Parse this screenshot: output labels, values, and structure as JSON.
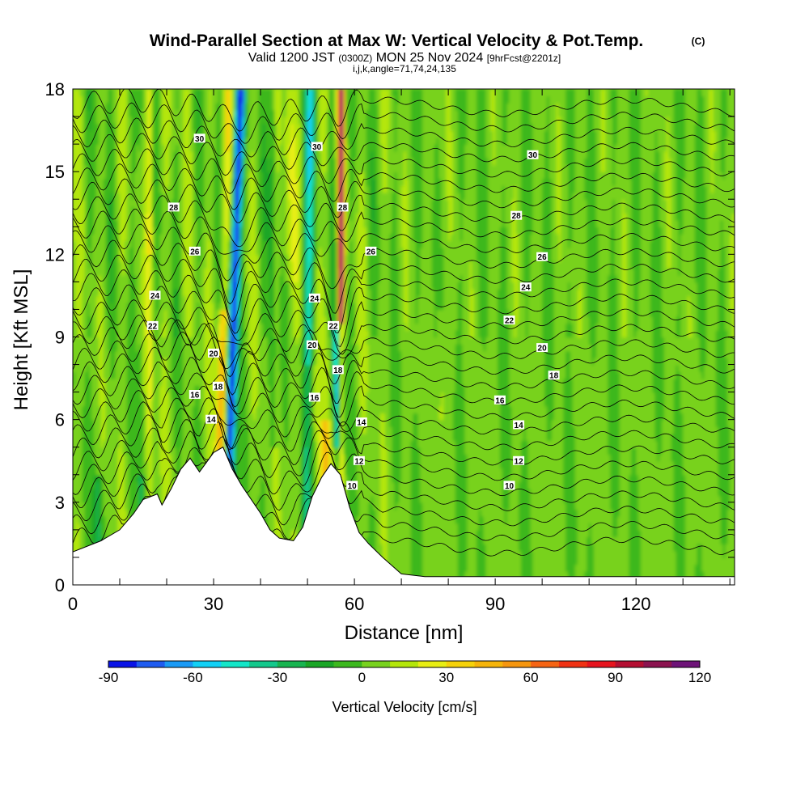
{
  "header": {
    "title_main": "Wind-Parallel Section at Max W: Vertical Velocity & Pot.Temp.",
    "title_mark": "(C)",
    "valid_a": "Valid 1200 JST",
    "valid_b": "(0300Z)",
    "valid_c": "MON 25 Nov 2024",
    "valid_d": "[9hrFcst@2201z]",
    "indices": "i,j,k,angle=71,74,24,135"
  },
  "chart_data": {
    "type": "heatmap",
    "xlabel": "Distance [nm]",
    "ylabel": "Height [Kft MSL]",
    "xlim": [
      0,
      141
    ],
    "ylim": [
      0,
      18
    ],
    "x_ticks": [
      0,
      30,
      60,
      90,
      120
    ],
    "y_ticks": [
      0,
      3,
      6,
      9,
      12,
      15,
      18
    ],
    "colorbar": {
      "label": "Vertical Velocity [cm/s]",
      "ticks": [
        -90,
        -60,
        -30,
        0,
        30,
        60,
        90,
        120
      ],
      "levels": [
        -90,
        -80,
        -70,
        -60,
        -50,
        -40,
        -30,
        -20,
        -10,
        0,
        10,
        20,
        30,
        40,
        50,
        60,
        70,
        80,
        90,
        100,
        110,
        120
      ],
      "colors": [
        "#0a14e6",
        "#1f5cf0",
        "#1a9af5",
        "#12d0f5",
        "#14e6c8",
        "#14c88c",
        "#18b450",
        "#1aa626",
        "#3cb81e",
        "#78d21e",
        "#b4e60a",
        "#e8ee14",
        "#f5d20a",
        "#f5b40a",
        "#f5960f",
        "#f56414",
        "#f03214",
        "#e6141e",
        "#b40f32",
        "#8c1450",
        "#6e1478"
      ]
    },
    "terrain_kft": [
      [
        0,
        1.2
      ],
      [
        6,
        1.6
      ],
      [
        10,
        2.0
      ],
      [
        13,
        2.6
      ],
      [
        15,
        3.1
      ],
      [
        18,
        3.3
      ],
      [
        19,
        2.9
      ],
      [
        21,
        3.5
      ],
      [
        23,
        4.2
      ],
      [
        25,
        4.6
      ],
      [
        27,
        4.1
      ],
      [
        30,
        4.8
      ],
      [
        32,
        5.0
      ],
      [
        34,
        4.2
      ],
      [
        36,
        3.6
      ],
      [
        38,
        3.1
      ],
      [
        40,
        2.6
      ],
      [
        42,
        2.0
      ],
      [
        44,
        1.7
      ],
      [
        47,
        1.6
      ],
      [
        49,
        2.1
      ],
      [
        51,
        3.2
      ],
      [
        53,
        3.9
      ],
      [
        55,
        4.4
      ],
      [
        57,
        4.0
      ],
      [
        59,
        2.8
      ],
      [
        61,
        1.9
      ],
      [
        63,
        1.5
      ],
      [
        66,
        1.0
      ],
      [
        70,
        0.4
      ],
      [
        75,
        0.3
      ],
      [
        141,
        0.3
      ]
    ],
    "theta_contour_labels": [
      {
        "value": "30",
        "x": 27,
        "y": 16.2
      },
      {
        "value": "30",
        "x": 52,
        "y": 15.9
      },
      {
        "value": "30",
        "x": 98,
        "y": 15.6
      },
      {
        "value": "28",
        "x": 21.5,
        "y": 13.7
      },
      {
        "value": "28",
        "x": 57.5,
        "y": 13.7
      },
      {
        "value": "28",
        "x": 94.5,
        "y": 13.4
      },
      {
        "value": "26",
        "x": 26,
        "y": 12.1
      },
      {
        "value": "26",
        "x": 63.5,
        "y": 12.1
      },
      {
        "value": "26",
        "x": 100,
        "y": 11.9
      },
      {
        "value": "24",
        "x": 17.5,
        "y": 10.5
      },
      {
        "value": "24",
        "x": 51.5,
        "y": 10.4
      },
      {
        "value": "24",
        "x": 96.5,
        "y": 10.8
      },
      {
        "value": "22",
        "x": 17,
        "y": 9.4
      },
      {
        "value": "22",
        "x": 55.5,
        "y": 9.4
      },
      {
        "value": "22",
        "x": 93,
        "y": 9.6
      },
      {
        "value": "20",
        "x": 30,
        "y": 8.4
      },
      {
        "value": "20",
        "x": 51,
        "y": 8.7
      },
      {
        "value": "20",
        "x": 100,
        "y": 8.6
      },
      {
        "value": "18",
        "x": 31,
        "y": 7.2
      },
      {
        "value": "18",
        "x": 56.5,
        "y": 7.8
      },
      {
        "value": "18",
        "x": 102.5,
        "y": 7.6
      },
      {
        "value": "16",
        "x": 26,
        "y": 6.9
      },
      {
        "value": "16",
        "x": 51.5,
        "y": 6.8
      },
      {
        "value": "16",
        "x": 91,
        "y": 6.7
      },
      {
        "value": "14",
        "x": 29.5,
        "y": 6.0
      },
      {
        "value": "14",
        "x": 61.5,
        "y": 5.9
      },
      {
        "value": "14",
        "x": 95,
        "y": 5.8
      },
      {
        "value": "12",
        "x": 61,
        "y": 4.5
      },
      {
        "value": "12",
        "x": 95,
        "y": 4.5
      },
      {
        "value": "10",
        "x": 59.5,
        "y": 3.6
      },
      {
        "value": "10",
        "x": 93,
        "y": 3.6
      }
    ]
  }
}
